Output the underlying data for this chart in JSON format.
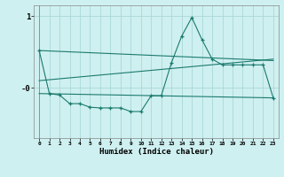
{
  "xlabel": "Humidex (Indice chaleur)",
  "bg_color": "#cff0f0",
  "line_color": "#1a7a6e",
  "grid_color": "#aad8d8",
  "xlim": [
    -0.5,
    23.5
  ],
  "ylim": [
    -0.7,
    1.15
  ],
  "yticks": [
    1.0,
    0.0
  ],
  "ytick_labels": [
    "1",
    "-0"
  ],
  "xticks": [
    0,
    1,
    2,
    3,
    4,
    5,
    6,
    7,
    8,
    9,
    10,
    11,
    12,
    13,
    14,
    15,
    16,
    17,
    18,
    19,
    20,
    21,
    22,
    23
  ],
  "main_x": [
    0,
    1,
    2,
    3,
    4,
    5,
    6,
    7,
    8,
    9,
    10,
    11,
    12,
    13,
    14,
    15,
    16,
    17,
    18,
    19,
    20,
    21,
    22,
    23
  ],
  "main_y": [
    0.52,
    -0.08,
    -0.1,
    -0.22,
    -0.22,
    -0.27,
    -0.28,
    -0.28,
    -0.28,
    -0.33,
    -0.33,
    -0.11,
    -0.11,
    0.35,
    0.72,
    0.98,
    0.67,
    0.4,
    0.32,
    0.32,
    0.32,
    0.32,
    0.32,
    -0.14
  ],
  "top_line_x": [
    0,
    23
  ],
  "top_line_y": [
    0.52,
    0.38
  ],
  "mid_line_x": [
    0,
    23
  ],
  "mid_line_y": [
    0.1,
    0.4
  ],
  "bot_line_x": [
    0,
    23
  ],
  "bot_line_y": [
    -0.08,
    -0.14
  ]
}
